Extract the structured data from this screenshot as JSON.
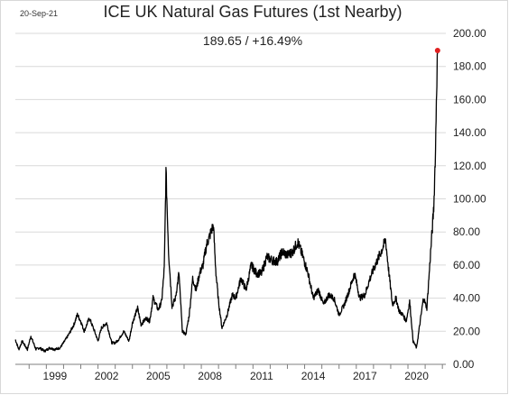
{
  "header": {
    "date": "20-Sep-21",
    "title": "ICE UK Natural Gas Futures (1st Nearby)",
    "subtitle": "189.65  /  +16.49%"
  },
  "chart_data": {
    "type": "line",
    "title": "ICE UK Natural Gas Futures (1st Nearby)",
    "subtitle": "189.65  /  +16.49%",
    "xlabel": "",
    "ylabel": "",
    "xlim": [
      1997.2,
      2022.2
    ],
    "ylim": [
      0,
      200
    ],
    "grid": "horizontal",
    "legend": "none",
    "line_color": "#000000",
    "marker_color": "#e02020",
    "x_ticks": [
      "1999",
      "2002",
      "2005",
      "2008",
      "2011",
      "2014",
      "2017",
      "2020"
    ],
    "x_tick_values": [
      1999,
      2002,
      2005,
      2008,
      2011,
      2014,
      2017,
      2020
    ],
    "y_ticks": [
      "0.00",
      "20.00",
      "40.00",
      "60.00",
      "80.00",
      "100.00",
      "120.00",
      "140.00",
      "160.00",
      "180.00",
      "200.00"
    ],
    "y_tick_values": [
      0,
      20,
      40,
      60,
      80,
      100,
      120,
      140,
      160,
      180,
      200
    ],
    "series": [
      {
        "x": [
          1997.2,
          1997.4,
          1997.6,
          1997.9,
          1998.1,
          1998.4,
          1998.6,
          1998.9,
          1999.2,
          1999.5,
          1999.8,
          2000.0,
          2000.3,
          2000.6,
          2000.8,
          2001.0,
          2001.2,
          2001.5,
          2001.8,
          2002.0,
          2002.2,
          2002.5,
          2002.8,
          2003.0,
          2003.2,
          2003.5,
          2003.8,
          2004.0,
          2004.3,
          2004.5,
          2004.8,
          2005.0,
          2005.2,
          2005.5,
          2005.7,
          2005.85,
          2005.95,
          2006.1,
          2006.3,
          2006.5,
          2006.7,
          2006.9,
          2007.1,
          2007.3,
          2007.5,
          2007.7,
          2007.9,
          2008.1,
          2008.3,
          2008.5,
          2008.7,
          2008.85,
          2009.0,
          2009.2,
          2009.5,
          2009.8,
          2010.0,
          2010.3,
          2010.6,
          2010.9,
          2011.2,
          2011.5,
          2011.8,
          2012.1,
          2012.4,
          2012.7,
          2013.0,
          2013.3,
          2013.6,
          2013.9,
          2014.2,
          2014.5,
          2014.8,
          2015.1,
          2015.4,
          2015.7,
          2016.0,
          2016.3,
          2016.6,
          2016.9,
          2017.2,
          2017.5,
          2017.8,
          2018.1,
          2018.4,
          2018.7,
          2018.9,
          2019.1,
          2019.3,
          2019.5,
          2019.7,
          2019.9,
          2020.1,
          2020.3,
          2020.5,
          2020.7,
          2020.9,
          2021.1,
          2021.3,
          2021.5,
          2021.6,
          2021.65,
          2021.7,
          2021.72
        ],
        "values": [
          15,
          9,
          14,
          9,
          17,
          9,
          10,
          8,
          10,
          9,
          10,
          13,
          18,
          24,
          30,
          26,
          20,
          28,
          20,
          14,
          22,
          25,
          13,
          13,
          15,
          20,
          14,
          25,
          34,
          24,
          28,
          26,
          40,
          33,
          38,
          58,
          116,
          68,
          35,
          40,
          55,
          20,
          18,
          30,
          52,
          45,
          55,
          60,
          72,
          78,
          84,
          55,
          38,
          22,
          30,
          42,
          40,
          52,
          45,
          60,
          55,
          55,
          65,
          63,
          62,
          68,
          66,
          68,
          74,
          65,
          55,
          40,
          45,
          36,
          42,
          40,
          30,
          36,
          45,
          55,
          40,
          42,
          52,
          60,
          67,
          75,
          55,
          36,
          40,
          32,
          30,
          26,
          38,
          14,
          10,
          25,
          40,
          34,
          65,
          95,
          130,
          160,
          182,
          189.65
        ]
      }
    ]
  }
}
